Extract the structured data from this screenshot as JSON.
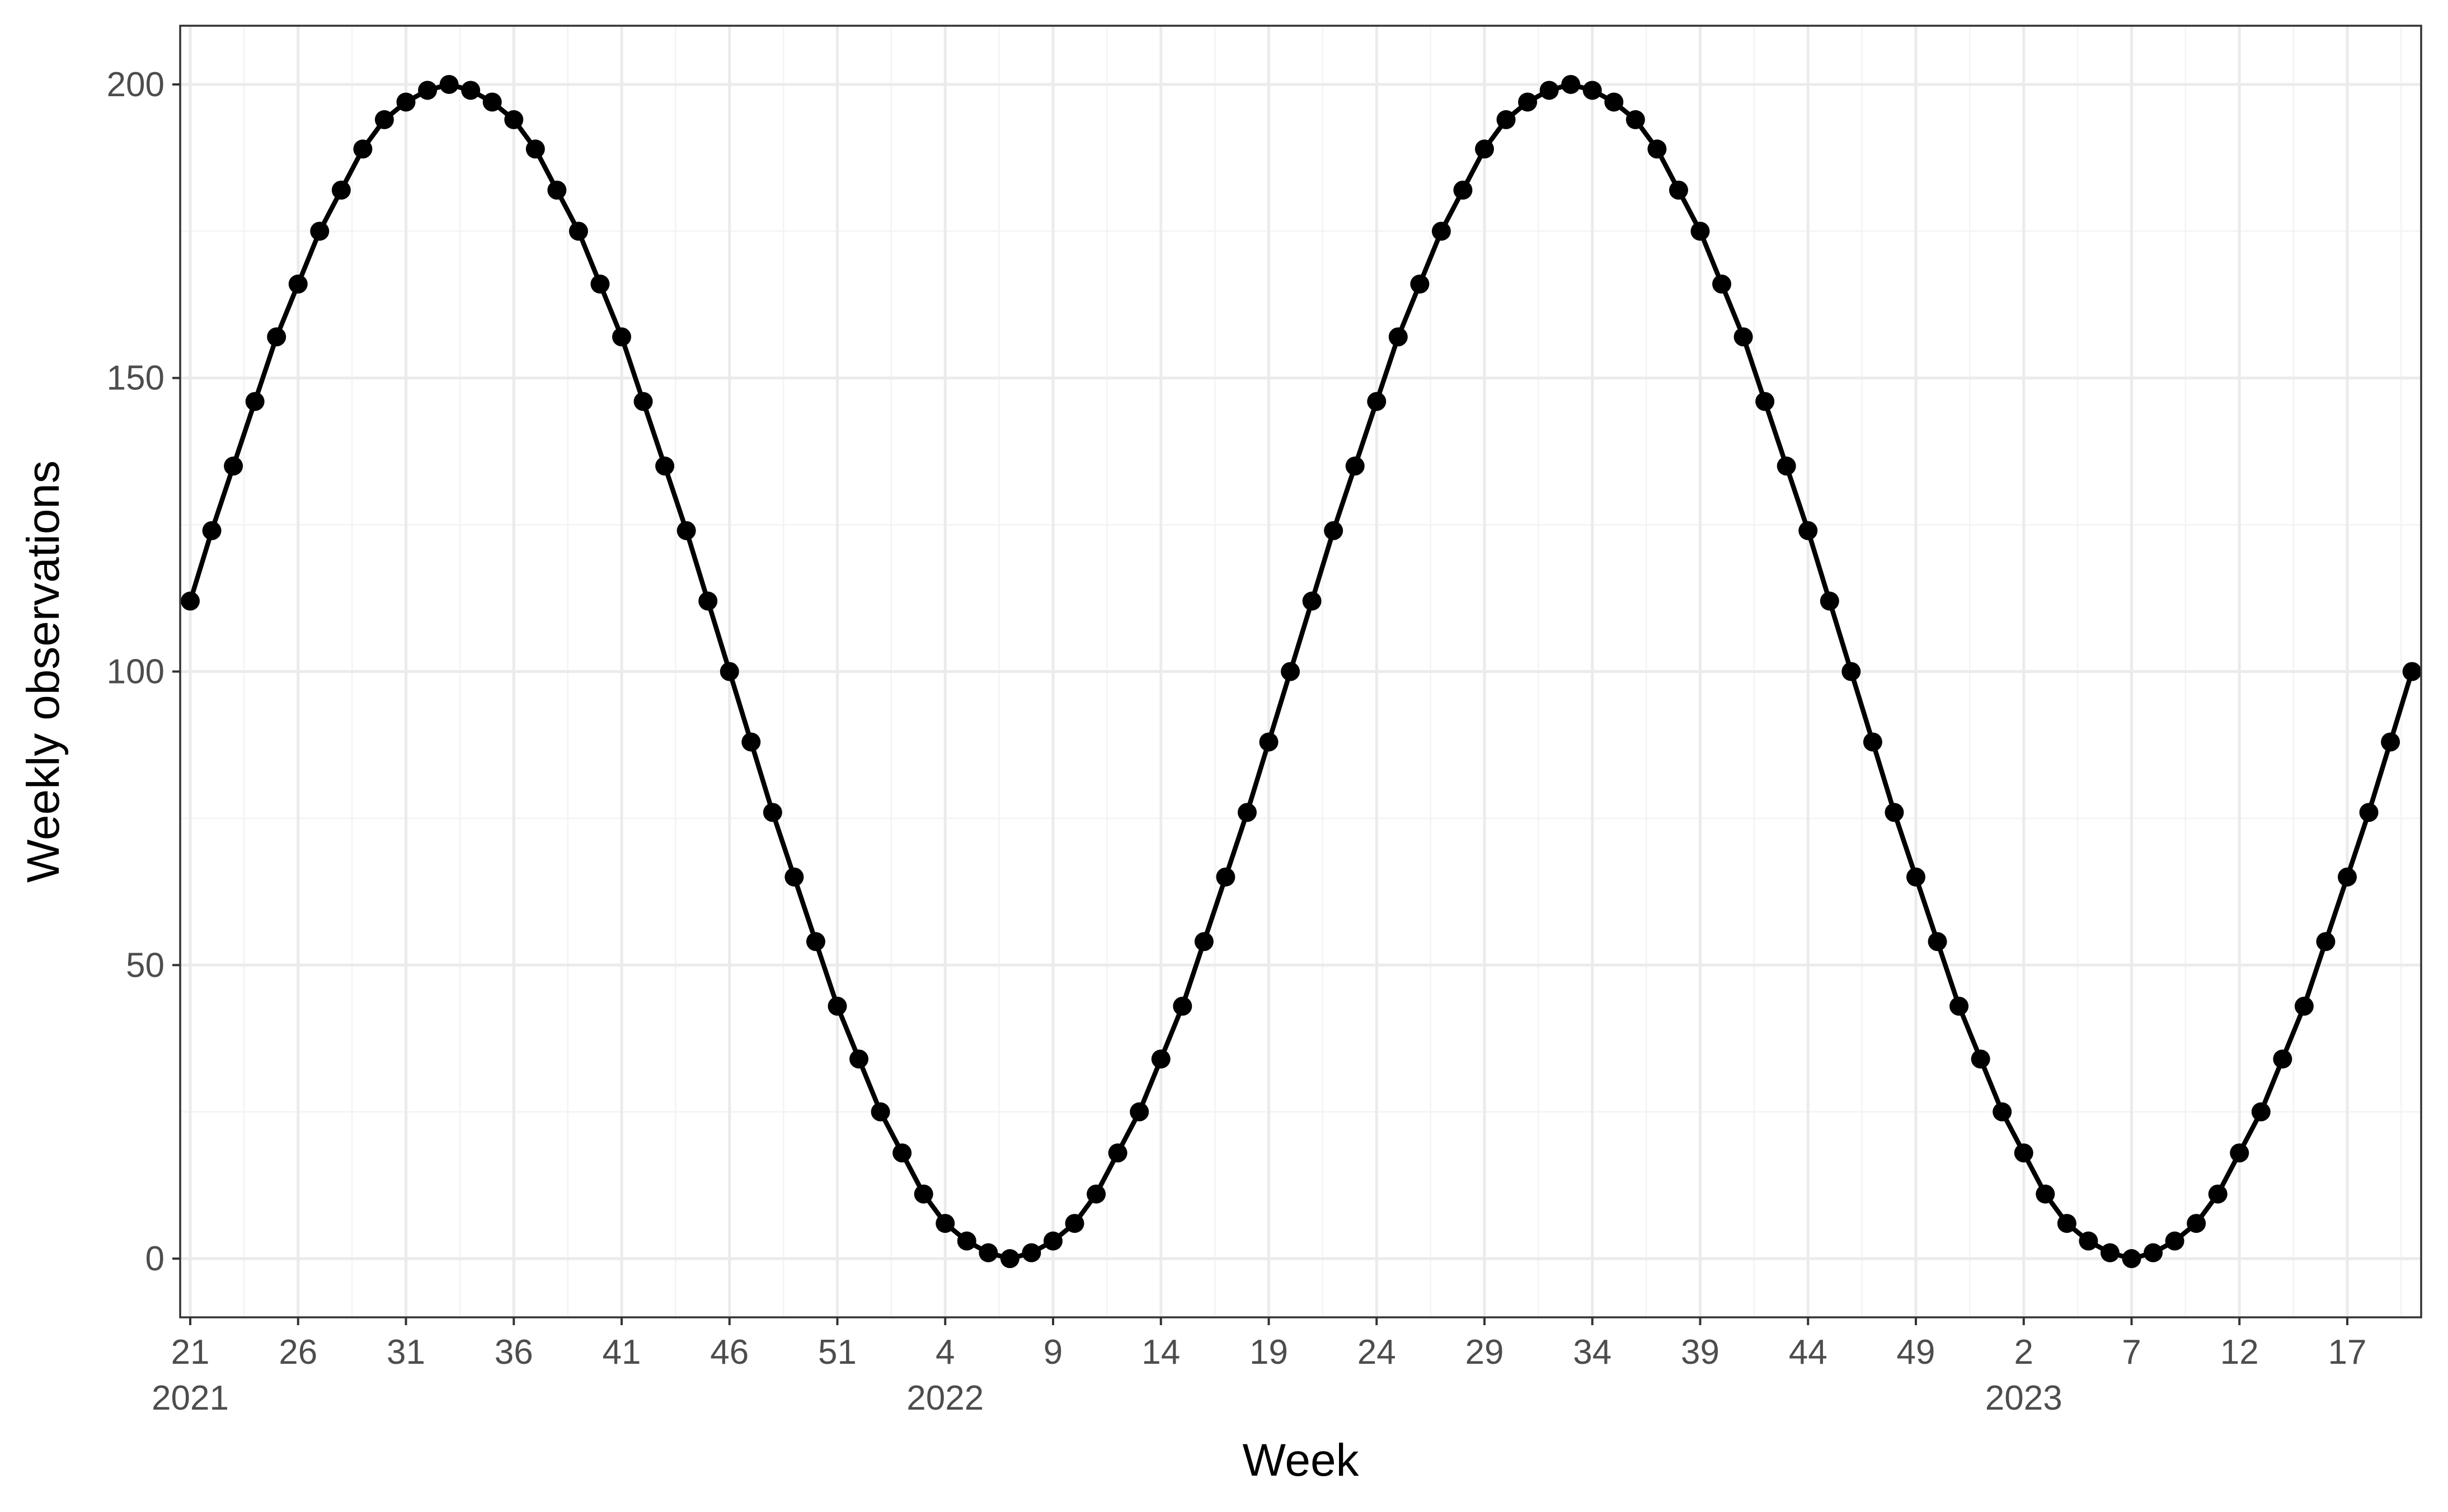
{
  "chart_data": {
    "type": "line",
    "xlabel": "Week",
    "ylabel": "Weekly observations",
    "ylim": [
      -10,
      210
    ],
    "y_ticks": [
      0,
      50,
      100,
      150,
      200
    ],
    "grid": true,
    "x_start": "2021 week 21",
    "x_end": "2023 week 20",
    "x_ticks": [
      {
        "label": "21",
        "year": "2021"
      },
      {
        "label": "26"
      },
      {
        "label": "31"
      },
      {
        "label": "36"
      },
      {
        "label": "41"
      },
      {
        "label": "46"
      },
      {
        "label": "51"
      },
      {
        "label": "4",
        "year": "2022"
      },
      {
        "label": "9"
      },
      {
        "label": "14"
      },
      {
        "label": "19"
      },
      {
        "label": "24"
      },
      {
        "label": "29"
      },
      {
        "label": "34"
      },
      {
        "label": "39"
      },
      {
        "label": "44"
      },
      {
        "label": "49"
      },
      {
        "label": "2",
        "year": "2023"
      },
      {
        "label": "7"
      },
      {
        "label": "12"
      },
      {
        "label": "17"
      }
    ],
    "series": [
      {
        "color": "#000000",
        "values": [
          112,
          124,
          135,
          146,
          157,
          166,
          175,
          182,
          189,
          194,
          197,
          199,
          200,
          199,
          197,
          194,
          189,
          182,
          175,
          166,
          157,
          146,
          135,
          124,
          112,
          100,
          88,
          76,
          65,
          54,
          43,
          34,
          25,
          18,
          11,
          6,
          3,
          1,
          0,
          1,
          3,
          6,
          11,
          18,
          25,
          34,
          43,
          54,
          65,
          76,
          88,
          100,
          112,
          124,
          135,
          146,
          157,
          166,
          175,
          182,
          189,
          194,
          197,
          199,
          200,
          199,
          197,
          194,
          189,
          182,
          175,
          166,
          157,
          146,
          135,
          124,
          112,
          100,
          88,
          76,
          65,
          54,
          43,
          34,
          25,
          18,
          11,
          6,
          3,
          1,
          0,
          1,
          3,
          6,
          11,
          18,
          25,
          34,
          43,
          54,
          65,
          76,
          88,
          100
        ]
      }
    ]
  }
}
